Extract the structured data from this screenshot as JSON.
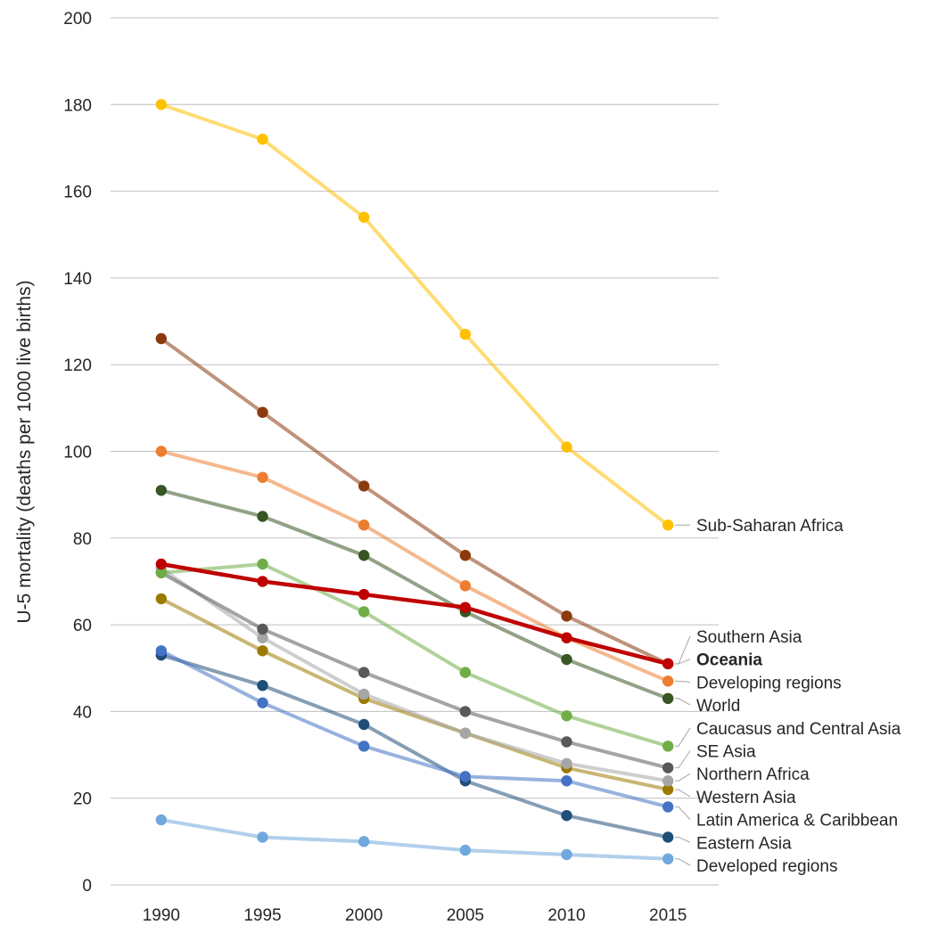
{
  "chart_data": {
    "type": "line",
    "title": "",
    "xlabel": "",
    "ylabel": "U-5 mortality (deaths per 1000 live births)",
    "x": [
      "1990",
      "1995",
      "2000",
      "2005",
      "2010",
      "2015"
    ],
    "ylim": [
      0,
      200
    ],
    "yticks": [
      0,
      20,
      40,
      60,
      80,
      100,
      120,
      140,
      160,
      180,
      200
    ],
    "grid": true,
    "legend": "none (series labelled at right end of lines)",
    "series": [
      {
        "name": "Developed regions",
        "color": "#6FA8DC",
        "values": [
          15,
          11,
          10,
          8,
          7,
          6
        ]
      },
      {
        "name": "Eastern Asia",
        "color": "#1F4E79",
        "values": [
          53,
          46,
          37,
          24,
          16,
          11
        ]
      },
      {
        "name": "Latin America & Caribbean",
        "color": "#4472C4",
        "values": [
          54,
          42,
          32,
          25,
          24,
          18
        ]
      },
      {
        "name": "Western Asia",
        "color": "#9C7A00",
        "values": [
          66,
          54,
          43,
          35,
          27,
          22
        ]
      },
      {
        "name": "Northern Africa",
        "color": "#A6A6A6",
        "values": [
          73,
          57,
          44,
          35,
          28,
          24
        ]
      },
      {
        "name": "SE Asia",
        "color": "#595959",
        "values": [
          72,
          59,
          49,
          40,
          33,
          27
        ]
      },
      {
        "name": "Caucasus and Central Asia",
        "color": "#70AD47",
        "values": [
          72,
          74,
          63,
          49,
          39,
          32
        ]
      },
      {
        "name": "World",
        "color": "#375623",
        "values": [
          91,
          85,
          76,
          63,
          52,
          43
        ]
      },
      {
        "name": "Developing regions",
        "color": "#ED7D31",
        "values": [
          100,
          94,
          83,
          69,
          57,
          47
        ]
      },
      {
        "name": "Southern Asia",
        "color": "#8B3A0E",
        "values": [
          126,
          109,
          92,
          76,
          62,
          51
        ]
      },
      {
        "name": "Sub-Saharan Africa",
        "color": "#FFC000",
        "values": [
          180,
          172,
          154,
          127,
          101,
          83
        ]
      },
      {
        "name": "Oceania",
        "color": "#C00000",
        "values": [
          74,
          70,
          67,
          64,
          57,
          51
        ],
        "highlight": true
      }
    ],
    "labels": [
      {
        "series": "Sub-Saharan Africa",
        "text": "Sub-Saharan Africa"
      },
      {
        "series": "Southern Asia",
        "text": "Southern Asia"
      },
      {
        "series": "Oceania",
        "text": "Oceania",
        "bold": true
      },
      {
        "series": "Developing regions",
        "text": "Developing regions"
      },
      {
        "series": "World",
        "text": "World"
      },
      {
        "series": "Caucasus and Central Asia",
        "text": "Caucasus and Central Asia"
      },
      {
        "series": "SE Asia",
        "text": "SE Asia"
      },
      {
        "series": "Northern Africa",
        "text": "Northern Africa"
      },
      {
        "series": "Western Asia",
        "text": "Western Asia"
      },
      {
        "series": "Latin America & Caribbean",
        "text": "Latin America & Caribbean"
      },
      {
        "series": "Eastern Asia",
        "text": "Eastern Asia"
      },
      {
        "series": "Developed regions",
        "text": "Developed regions"
      }
    ]
  }
}
